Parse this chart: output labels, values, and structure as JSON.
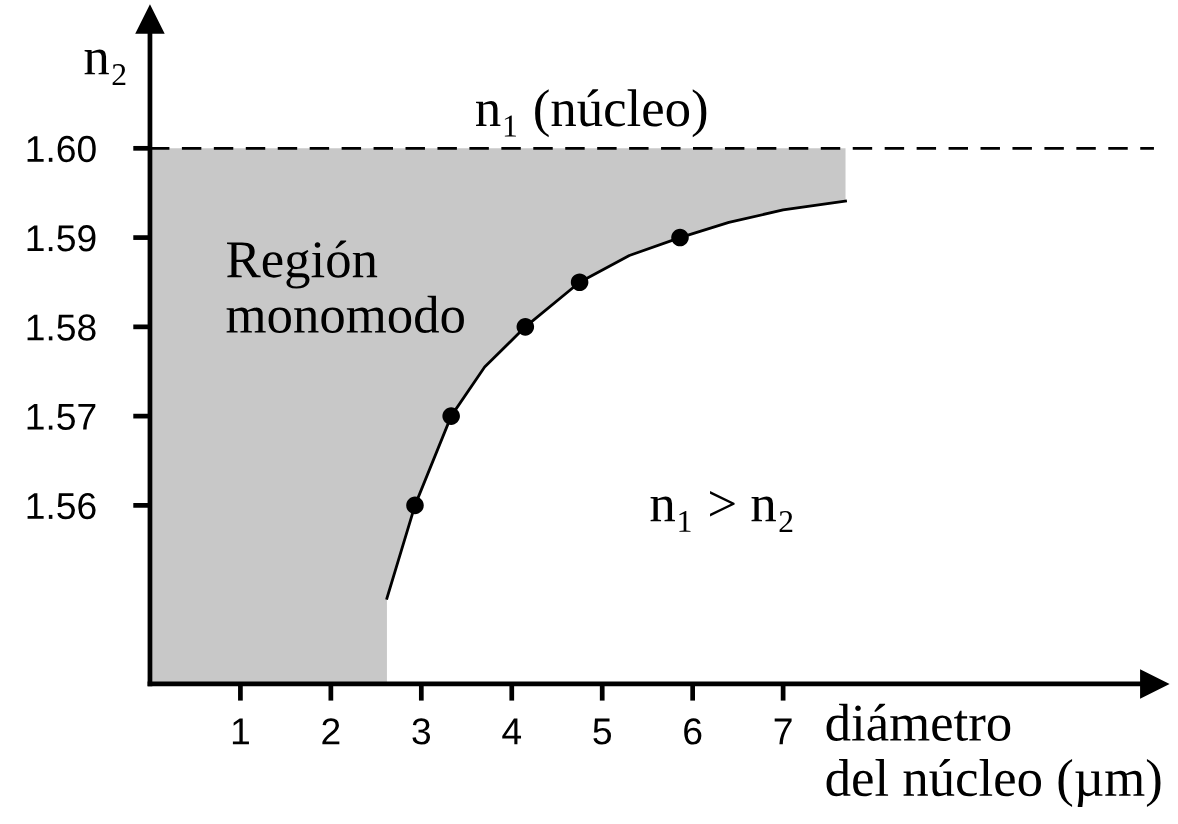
{
  "chart_data": {
    "type": "line",
    "xlabel": "diámetro\ndel núcleo (µm)",
    "ylabel": "n₂",
    "xlim": [
      0,
      11.1
    ],
    "xticks": [
      1,
      2,
      3,
      4,
      5,
      6,
      7
    ],
    "ylim": [
      1.54,
      1.6144
    ],
    "yticks": [
      1.56,
      1.57,
      1.58,
      1.59,
      {
        "value": 1.6,
        "label": "1.60"
      }
    ],
    "series": [
      {
        "type": "area",
        "color": "#c8c8c8",
        "x": [
          0,
          2.62
        ],
        "values": [
          1.6,
          1.6
        ]
      },
      {
        "color": "#000000",
        "x": [
          2.62,
          2.93,
          3.33,
          3.7,
          4.15,
          4.75,
          5.3,
          5.86,
          6.4,
          7.0,
          7.69
        ],
        "values": [
          1.5496,
          1.56,
          1.57,
          1.5755,
          1.58,
          1.585,
          1.588,
          1.59,
          1.5917,
          1.5931,
          1.5941
        ],
        "lower": [
          1.5496,
          1.56,
          1.57,
          1.5755,
          1.58,
          1.585,
          1.588,
          1.59,
          1.5917,
          1.5931,
          1.5941
        ],
        "upper": [
          1.6,
          1.6,
          1.6,
          1.6,
          1.6,
          1.6,
          1.6,
          1.6,
          1.6,
          1.6,
          1.6
        ]
      },
      {
        "type": "scatter",
        "color": "#000000",
        "marker": "circle",
        "x": [
          2.93,
          3.33,
          4.15,
          4.75,
          5.86
        ],
        "values": [
          1.56,
          1.57,
          1.58,
          1.585,
          1.59
        ]
      }
    ],
    "ref_lines": [
      {
        "axis": "y",
        "value": 1.6,
        "label": "n₁ (núcleo)",
        "color": "#000000",
        "line_style": "dashed"
      }
    ],
    "annotations": [
      "Región\nmonomodo",
      "n₁ > n₂"
    ]
  }
}
